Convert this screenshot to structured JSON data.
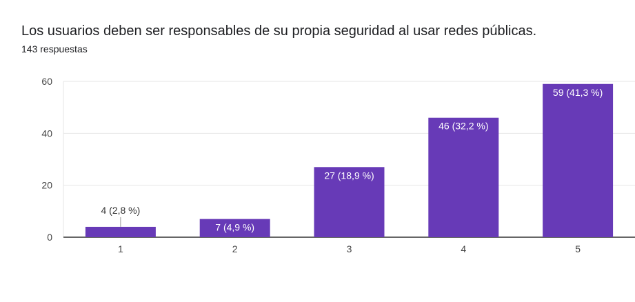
{
  "question_title": "Los usuarios deben ser responsables de su propia seguridad al usar redes públicas.",
  "response_count": "143 respuestas",
  "colors": {
    "bar": "#673ab7",
    "grid": "#e6e6e6",
    "axis": "#333333"
  },
  "chart_data": {
    "type": "bar",
    "categories": [
      "1",
      "2",
      "3",
      "4",
      "5"
    ],
    "values": [
      4,
      7,
      27,
      46,
      59
    ],
    "data_labels": [
      "4 (2,8 %)",
      "7 (4,9 %)",
      "27 (18,9 %)",
      "46 (32,2 %)",
      "59 (41,3 %)"
    ],
    "ylim": [
      0,
      60
    ],
    "yticks": [
      0,
      20,
      40,
      60
    ],
    "xlabel": "",
    "ylabel": "",
    "grid": true,
    "legend": "none"
  }
}
